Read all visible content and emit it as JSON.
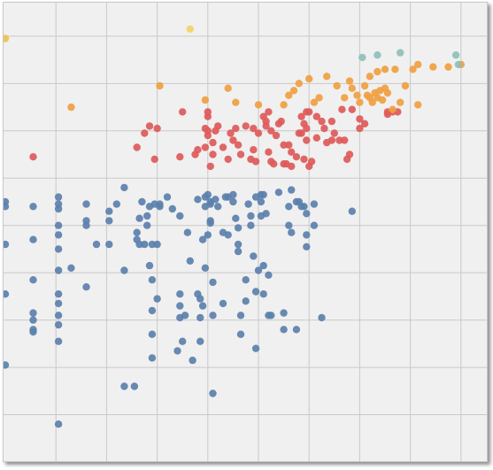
{
  "chart_data": {
    "type": "scatter",
    "title": "",
    "xlabel": "",
    "ylabel": "",
    "grid": true,
    "legend": "none",
    "xlim": [
      0,
      19
    ],
    "ylim": [
      0,
      19.4
    ],
    "x_gridlines": [
      2,
      4,
      6,
      8,
      10,
      12,
      14,
      16,
      18
    ],
    "y_gridlines": [
      0,
      2,
      4,
      6,
      8,
      10,
      12,
      14,
      16,
      18
    ],
    "series": [
      {
        "color": "#5b80ad",
        "points": [
          [
            0,
            11
          ],
          [
            0,
            10.8
          ],
          [
            0,
            9.2
          ],
          [
            0,
            7.1
          ],
          [
            0,
            4.1
          ],
          [
            1.1,
            10.8
          ],
          [
            1.1,
            9.4
          ],
          [
            1.1,
            7.7
          ],
          [
            1.1,
            6.3
          ],
          [
            1.1,
            6
          ],
          [
            1.1,
            5.6
          ],
          [
            1.1,
            5.5
          ],
          [
            2.1,
            11.2
          ],
          [
            2.1,
            10.9
          ],
          [
            2.1,
            10.7
          ],
          [
            2.1,
            10
          ],
          [
            2.1,
            9.6
          ],
          [
            2.1,
            9
          ],
          [
            2.1,
            8.1
          ],
          [
            2.1,
            7.1
          ],
          [
            2.1,
            6.7
          ],
          [
            2.1,
            6.2
          ],
          [
            2.1,
            5.8
          ],
          [
            2.1,
            5.1
          ],
          [
            2.1,
            1.6
          ],
          [
            2.6,
            8.2
          ],
          [
            3.2,
            10.9
          ],
          [
            3.2,
            10.2
          ],
          [
            3.2,
            10
          ],
          [
            3.2,
            7.4
          ],
          [
            3.6,
            9.2
          ],
          [
            4.1,
            10.6
          ],
          [
            4.1,
            10.2
          ],
          [
            4.1,
            9.2
          ],
          [
            4.4,
            10.9
          ],
          [
            4.7,
            11.6
          ],
          [
            4.7,
            8.1
          ],
          [
            4.7,
            3.2
          ],
          [
            5.1,
            3.2
          ],
          [
            5.2,
            9.7
          ],
          [
            5.2,
            9.4
          ],
          [
            5.3,
            9.2
          ],
          [
            5.3,
            10.3
          ],
          [
            5.4,
            11
          ],
          [
            5.5,
            9.2
          ],
          [
            5.6,
            10.4
          ],
          [
            5.6,
            10
          ],
          [
            5.7,
            10.8
          ],
          [
            5.7,
            8.3
          ],
          [
            5.8,
            9.2
          ],
          [
            5.8,
            7.7
          ],
          [
            5.8,
            6.4
          ],
          [
            5.8,
            5.4
          ],
          [
            5.8,
            4.4
          ],
          [
            5.9,
            10.9
          ],
          [
            6,
            9.2
          ],
          [
            6,
            6.9
          ],
          [
            6.1,
            10.9
          ],
          [
            6.1,
            10.8
          ],
          [
            6.4,
            11.2
          ],
          [
            6.6,
            10.7
          ],
          [
            6.8,
            4.7
          ],
          [
            6.9,
            10.4
          ],
          [
            6.9,
            7.1
          ],
          [
            6.9,
            6.6
          ],
          [
            6.9,
            6.1
          ],
          [
            7,
            5.1
          ],
          [
            7.1,
            6.2
          ],
          [
            7.2,
            9.7
          ],
          [
            7.3,
            8.5
          ],
          [
            7.4,
            4.3
          ],
          [
            7.6,
            11.1
          ],
          [
            7.6,
            7.1
          ],
          [
            7.7,
            6.1
          ],
          [
            7.7,
            5.1
          ],
          [
            7.7,
            6.9
          ],
          [
            7.8,
            6.6
          ],
          [
            7.8,
            9.4
          ],
          [
            7.9,
            8.2
          ],
          [
            7.9,
            11.2
          ],
          [
            7.9,
            10.8
          ],
          [
            8,
            11.3
          ],
          [
            8,
            9.6
          ],
          [
            8.1,
            10.2
          ],
          [
            8.1,
            10.1
          ],
          [
            8.1,
            10.9
          ],
          [
            8.1,
            11
          ],
          [
            8.2,
            7.6
          ],
          [
            8.2,
            6.2
          ],
          [
            8.2,
            2.9
          ],
          [
            8.3,
            11.1
          ],
          [
            8.4,
            10.8
          ],
          [
            8.6,
            9.7
          ],
          [
            8.6,
            6.7
          ],
          [
            8.7,
            11.2
          ],
          [
            8.8,
            11.2
          ],
          [
            8.8,
            9.6
          ],
          [
            9,
            11.3
          ],
          [
            9,
            11
          ],
          [
            9.1,
            10.3
          ],
          [
            9.2,
            9.9
          ],
          [
            9.2,
            9.2
          ],
          [
            9.2,
            8.9
          ],
          [
            9.3,
            6.2
          ],
          [
            9.3,
            5.4
          ],
          [
            9.5,
            7.7
          ],
          [
            9.5,
            6.8
          ],
          [
            9.6,
            10.9
          ],
          [
            9.7,
            10.4
          ],
          [
            9.7,
            10
          ],
          [
            9.8,
            8.7
          ],
          [
            9.9,
            11.2
          ],
          [
            9.9,
            7.2
          ],
          [
            9.9,
            4.8
          ],
          [
            10,
            8.1
          ],
          [
            10.1,
            10.4
          ],
          [
            10.1,
            11.3
          ],
          [
            10.1,
            11
          ],
          [
            10.2,
            8.3
          ],
          [
            10.2,
            7.1
          ],
          [
            10.2,
            11.3
          ],
          [
            10.3,
            10.5
          ],
          [
            10.4,
            7.9
          ],
          [
            10.4,
            6.2
          ],
          [
            10.5,
            6.2
          ],
          [
            10.8,
            11.4
          ],
          [
            11,
            6.3
          ],
          [
            11,
            5.6
          ],
          [
            11.2,
            10.8
          ],
          [
            11.2,
            10
          ],
          [
            11.3,
            9.7
          ],
          [
            11.3,
            11.5
          ],
          [
            11.5,
            11
          ],
          [
            11.5,
            5.6
          ],
          [
            11.6,
            11
          ],
          [
            11.7,
            10.8
          ],
          [
            11.8,
            10.8
          ],
          [
            11.9,
            10.5
          ],
          [
            11.9,
            9.6
          ],
          [
            11.9,
            9.1
          ],
          [
            12.2,
            10
          ],
          [
            12.2,
            10.9
          ],
          [
            12.5,
            6.1
          ],
          [
            13.7,
            10.6
          ]
        ]
      },
      {
        "color": "#de5a5a",
        "points": [
          [
            1.1,
            12.9
          ],
          [
            5.2,
            13.3
          ],
          [
            5.5,
            13.9
          ],
          [
            5.7,
            14.2
          ],
          [
            5.9,
            12.8
          ],
          [
            6,
            14.1
          ],
          [
            6.9,
            12.9
          ],
          [
            7,
            14.8
          ],
          [
            7.5,
            13
          ],
          [
            7.6,
            13.2
          ],
          [
            7.9,
            14.1
          ],
          [
            7.9,
            13.3
          ],
          [
            8,
            14.8
          ],
          [
            8,
            14.6
          ],
          [
            8,
            14
          ],
          [
            8,
            13.8
          ],
          [
            8.1,
            12.5
          ],
          [
            8.2,
            13.5
          ],
          [
            8.2,
            13
          ],
          [
            8.3,
            14
          ],
          [
            8.4,
            14.2
          ],
          [
            8.6,
            13.3
          ],
          [
            8.8,
            12.8
          ],
          [
            8.9,
            13.9
          ],
          [
            9,
            13.6
          ],
          [
            9.1,
            14.1
          ],
          [
            9.2,
            13.4
          ],
          [
            9.3,
            13
          ],
          [
            9.5,
            14.2
          ],
          [
            9.7,
            12.8
          ],
          [
            9.8,
            14.1
          ],
          [
            9.8,
            13.2
          ],
          [
            9.9,
            12.7
          ],
          [
            10,
            13.9
          ],
          [
            10.2,
            14.6
          ],
          [
            10.3,
            14.4
          ],
          [
            10.3,
            14.2
          ],
          [
            10.4,
            13.1
          ],
          [
            10.4,
            14.8
          ],
          [
            10.5,
            14
          ],
          [
            10.5,
            12.7
          ],
          [
            10.6,
            12.6
          ],
          [
            10.7,
            13.8
          ],
          [
            10.8,
            14.3
          ],
          [
            10.9,
            14.4
          ],
          [
            11,
            13.4
          ],
          [
            11,
            12.6
          ],
          [
            11.1,
            12.6
          ],
          [
            11.2,
            13.4
          ],
          [
            11.3,
            12.5
          ],
          [
            11.3,
            13.1
          ],
          [
            11.5,
            12.9
          ],
          [
            11.6,
            13.9
          ],
          [
            11.7,
            14.6
          ],
          [
            11.7,
            13.9
          ],
          [
            11.8,
            14.3
          ],
          [
            11.8,
            12.8
          ],
          [
            11.9,
            14.8
          ],
          [
            11.9,
            14.1
          ],
          [
            11.9,
            13.6
          ],
          [
            12,
            14.8
          ],
          [
            12,
            12.5
          ],
          [
            12.1,
            12.7
          ],
          [
            12.3,
            13.7
          ],
          [
            12.3,
            14.6
          ],
          [
            12.5,
            14.4
          ],
          [
            12.6,
            14.1
          ],
          [
            12.7,
            13.5
          ],
          [
            12.9,
            14.4
          ],
          [
            12.9,
            13.6
          ],
          [
            13,
            13.9
          ],
          [
            13.2,
            13.6
          ],
          [
            13.3,
            14.9
          ],
          [
            13.4,
            13.6
          ],
          [
            13.5,
            12.8
          ],
          [
            13.6,
            13
          ],
          [
            13.7,
            14.9
          ],
          [
            14,
            14.1
          ],
          [
            14,
            14.5
          ],
          [
            14.2,
            14.3
          ],
          [
            15.1,
            14.7
          ],
          [
            15.1,
            14.8
          ],
          [
            15.3,
            14.8
          ],
          [
            15.5,
            14.8
          ]
        ]
      },
      {
        "color": "#f0a040",
        "points": [
          [
            2.6,
            15
          ],
          [
            6.1,
            15.9
          ],
          [
            7.9,
            15.3
          ],
          [
            8.8,
            15.8
          ],
          [
            9.1,
            15.2
          ],
          [
            10,
            15.1
          ],
          [
            11,
            15.1
          ],
          [
            11.2,
            15.5
          ],
          [
            11.4,
            15.7
          ],
          [
            11.6,
            16
          ],
          [
            12,
            16.2
          ],
          [
            12.2,
            15.2
          ],
          [
            12.4,
            15.4
          ],
          [
            12.7,
            16.3
          ],
          [
            13.1,
            15.9
          ],
          [
            13.4,
            15.4
          ],
          [
            13.6,
            16.1
          ],
          [
            13.7,
            15.8
          ],
          [
            13.9,
            15.5
          ],
          [
            14,
            15.2
          ],
          [
            14.2,
            15.9
          ],
          [
            14.3,
            15.5
          ],
          [
            14.4,
            15.4
          ],
          [
            14.4,
            16.3
          ],
          [
            14.5,
            15.2
          ],
          [
            14.6,
            15.6
          ],
          [
            14.7,
            15.4
          ],
          [
            14.7,
            16.5
          ],
          [
            14.8,
            15.7
          ],
          [
            14.9,
            15.3
          ],
          [
            15,
            15.8
          ],
          [
            15,
            16.6
          ],
          [
            15.1,
            15.6
          ],
          [
            15.3,
            14.9
          ],
          [
            15.4,
            16.6
          ],
          [
            15.6,
            15.2
          ],
          [
            15.8,
            15.9
          ],
          [
            16.1,
            16.6
          ],
          [
            16.3,
            16.8
          ],
          [
            16.3,
            15.1
          ],
          [
            16.9,
            16.7
          ],
          [
            17.5,
            16.7
          ],
          [
            18,
            16.8
          ]
        ]
      },
      {
        "color": "#8ebfb8",
        "points": [
          [
            14.1,
            17.1
          ],
          [
            14.7,
            17.2
          ],
          [
            15.6,
            17.3
          ],
          [
            17.8,
            17.2
          ],
          [
            17.9,
            16.8
          ]
        ]
      },
      {
        "color": "#f2d36b",
        "points": [
          [
            7.3,
            18.3
          ]
        ]
      },
      {
        "color": "#f0c050",
        "points": [
          [
            0,
            17.9
          ]
        ]
      }
    ]
  }
}
